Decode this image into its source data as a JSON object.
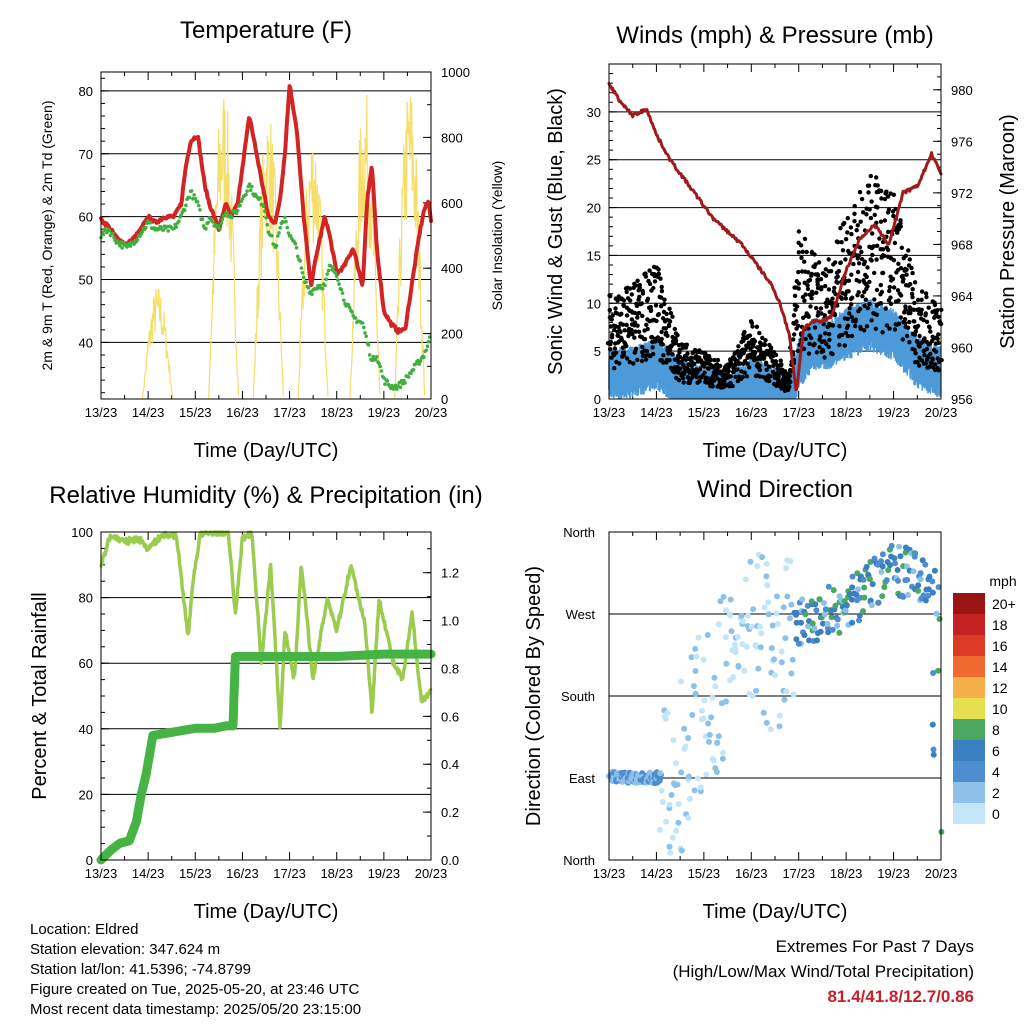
{
  "panels": {
    "temperature": {
      "title": "Temperature (F)",
      "xlabel": "Time (Day/UTC)",
      "ylabel_left": "2m & 9m T (Red, Orange) & 2m Td (Green)",
      "ylabel_right": "Solar Insolation (Yellow)"
    },
    "winds": {
      "title": "Winds (mph) & Pressure (mb)",
      "xlabel": "Time (Day/UTC)",
      "ylabel_left": "Sonic Wind & Gust (Blue, Black)",
      "ylabel_right": "Station Pressure (Maroon)"
    },
    "humidity": {
      "title": "Relative Humidity (%) & Precipitation (in)",
      "xlabel": "Time (Day/UTC)",
      "ylabel_left": "Percent & Total Rainfall"
    },
    "direction": {
      "title": "Wind Direction",
      "xlabel": "Time (Day/UTC)",
      "ylabel_left": "Direction (Colored By Speed)",
      "legend_title": "mph"
    }
  },
  "station": {
    "location": "Location: Eldred",
    "elevation": "Station elevation: 347.624 m",
    "latlon": "Station lat/lon: 41.5396; -74.8799",
    "created": "Figure created on Tue, 2025-05-20, at 23:46 UTC",
    "latest": "Most recent data timestamp: 2025/05/20 23:15:00"
  },
  "extremes": {
    "title": "Extremes For Past 7 Days",
    "subtitle": "(High/Low/Max Wind/Total Precipitation)",
    "values": "81.4/41.8/12.7/0.86"
  },
  "colors": {
    "temp2m": "#d42323",
    "temp9m": "#f08a2a",
    "dewpoint": "#3fb040",
    "solar": "#f5de6a",
    "gust": "#000000",
    "wind": "#4d9bd9",
    "pressure": "#9e1b1b",
    "rh": "#9ccc4f",
    "precip": "#46b444",
    "extremes": "#c8202a"
  },
  "chart_data": [
    {
      "type": "line",
      "title": "Temperature (F)",
      "xlabel": "Time (Day/UTC)",
      "ylabel": "2m & 9m T (Red, Orange) & 2m Td (Green)",
      "y2label": "Solar Insolation (Yellow)",
      "x_ticks": [
        "13/23",
        "14/23",
        "15/23",
        "16/23",
        "17/23",
        "18/23",
        "19/23",
        "20/23"
      ],
      "xlim": [
        0,
        7
      ],
      "ylim": [
        31,
        83
      ],
      "y_ticks": [
        40,
        50,
        60,
        70,
        80
      ],
      "y2lim": [
        0,
        1000
      ],
      "y2_ticks": [
        0,
        200,
        400,
        600,
        800,
        1000
      ],
      "grid": true,
      "series": [
        {
          "name": "2m T",
          "color": "#d42323",
          "axis": "left",
          "style": "line",
          "x": [
            0,
            0.15,
            0.35,
            0.55,
            0.75,
            0.85,
            1.0,
            1.15,
            1.35,
            1.55,
            1.7,
            1.8,
            1.9,
            2.05,
            2.2,
            2.3,
            2.5,
            2.65,
            2.75,
            2.9,
            3.0,
            3.15,
            3.3,
            3.45,
            3.55,
            3.7,
            3.8,
            3.9,
            4.0,
            4.15,
            4.3,
            4.45,
            4.6,
            4.75,
            4.85,
            5.0,
            5.15,
            5.35,
            5.55,
            5.65,
            5.75,
            5.85,
            6.0,
            6.15,
            6.3,
            6.45,
            6.55,
            6.65,
            6.75,
            6.85,
            6.95,
            7.0
          ],
          "y": [
            59.5,
            58.5,
            56.5,
            55.5,
            57.0,
            58.0,
            60.0,
            59.0,
            60.0,
            60.0,
            62.0,
            68.0,
            72.0,
            73.0,
            65.0,
            62.0,
            58.0,
            62.0,
            60.0,
            62.0,
            68.0,
            76.0,
            70.0,
            64.0,
            60.0,
            59.0,
            63.0,
            70.0,
            81.0,
            74.0,
            60.0,
            49.0,
            55.0,
            60.0,
            57.0,
            51.0,
            52.0,
            55.0,
            49.0,
            63.0,
            68.0,
            55.0,
            45.0,
            43.0,
            41.8,
            42.0,
            47.0,
            52.0,
            57.0,
            61.0,
            62.5,
            59.5
          ]
        },
        {
          "name": "2m Td",
          "color": "#3fb040",
          "axis": "left",
          "style": "dots",
          "x": [
            0,
            0.15,
            0.35,
            0.55,
            0.75,
            0.85,
            1.0,
            1.15,
            1.35,
            1.55,
            1.7,
            1.8,
            1.9,
            2.05,
            2.2,
            2.3,
            2.5,
            2.65,
            2.75,
            2.9,
            3.0,
            3.15,
            3.3,
            3.45,
            3.55,
            3.7,
            3.8,
            3.9,
            4.0,
            4.15,
            4.3,
            4.45,
            4.6,
            4.75,
            4.85,
            5.0,
            5.15,
            5.35,
            5.55,
            5.65,
            5.75,
            5.85,
            6.0,
            6.15,
            6.3,
            6.45,
            6.55,
            6.65,
            6.75,
            6.85,
            6.95,
            7.0
          ],
          "y": [
            57.0,
            58.0,
            56.0,
            55.0,
            56.5,
            57.5,
            59.0,
            58.0,
            58.0,
            58.0,
            60.0,
            62.0,
            64.0,
            62.0,
            58.0,
            60.0,
            58.0,
            61.0,
            60.0,
            61.0,
            63.0,
            65.0,
            63.0,
            62.0,
            58.0,
            55.0,
            58.0,
            60.0,
            57.0,
            55.0,
            50.0,
            48.0,
            49.0,
            49.0,
            52.0,
            51.0,
            47.0,
            44.0,
            43.0,
            40.0,
            37.0,
            38.0,
            34.0,
            33.0,
            33.0,
            34.0,
            35.0,
            36.0,
            37.0,
            38.0,
            40.0,
            41.0
          ]
        },
        {
          "name": "Solar Insolation",
          "color": "#f5de6a",
          "axis": "right",
          "style": "line",
          "peaks": [
            {
              "x": 1.2,
              "y": 350
            },
            {
              "x": 2.6,
              "y": 970
            },
            {
              "x": 3.55,
              "y": 900
            },
            {
              "x": 4.5,
              "y": 850
            },
            {
              "x": 5.6,
              "y": 950
            },
            {
              "x": 6.55,
              "y": 980
            }
          ]
        }
      ]
    },
    {
      "type": "scatter",
      "title": "Winds (mph) & Pressure (mb)",
      "xlabel": "Time (Day/UTC)",
      "ylabel": "Sonic Wind & Gust (Blue, Black)",
      "y2label": "Station Pressure (Maroon)",
      "x_ticks": [
        "13/23",
        "14/23",
        "15/23",
        "16/23",
        "17/23",
        "18/23",
        "19/23",
        "20/23"
      ],
      "xlim": [
        0,
        7
      ],
      "ylim": [
        0,
        35
      ],
      "y_ticks": [
        0,
        5,
        10,
        15,
        20,
        25,
        30
      ],
      "y2lim": [
        956,
        982
      ],
      "y2_ticks": [
        956,
        960,
        964,
        968,
        972,
        976,
        980
      ],
      "grid": true,
      "series": [
        {
          "name": "Sonic Wind",
          "color": "#4d9bd9",
          "axis": "left",
          "x": [
            0,
            0.5,
            1.0,
            1.5,
            2.0,
            2.5,
            3.0,
            3.5,
            3.8,
            4.0,
            4.3,
            4.6,
            5.0,
            5.5,
            6.0,
            6.5,
            7.0
          ],
          "y": [
            4.0,
            4.0,
            5.0,
            3.0,
            2.0,
            1.5,
            3.0,
            2.0,
            1.0,
            5.0,
            7.0,
            7.0,
            8.0,
            9.0,
            8.0,
            5.0,
            4.0
          ]
        },
        {
          "name": "Gust",
          "color": "#000000",
          "axis": "left",
          "x": [
            0,
            0.5,
            1.0,
            1.5,
            2.0,
            2.5,
            3.0,
            3.5,
            3.8,
            4.0,
            4.3,
            4.6,
            5.0,
            5.5,
            6.0,
            6.5,
            7.0
          ],
          "y": [
            9.0,
            10.0,
            12.0,
            5.0,
            4.0,
            3.0,
            7.0,
            4.0,
            2.0,
            15.0,
            13.0,
            12.0,
            16.0,
            20.0,
            18.0,
            10.0,
            8.0
          ]
        },
        {
          "name": "Station Pressure",
          "color": "#9e1b1b",
          "axis": "right",
          "x": [
            0,
            0.25,
            0.5,
            0.8,
            1.0,
            1.3,
            1.6,
            1.9,
            2.2,
            2.5,
            2.8,
            3.1,
            3.4,
            3.6,
            3.8,
            3.95,
            4.1,
            4.3,
            4.5,
            4.7,
            5.0,
            5.3,
            5.6,
            5.9,
            6.2,
            6.5,
            6.8,
            7.0
          ],
          "y": [
            980.5,
            979.0,
            978.0,
            978.5,
            976.5,
            974.5,
            973.0,
            971.5,
            970.0,
            969.0,
            968.0,
            966.5,
            965.0,
            963.5,
            961.0,
            956.5,
            961.5,
            962.0,
            962.0,
            962.5,
            966.0,
            968.5,
            969.5,
            968.0,
            972.0,
            972.5,
            975.0,
            973.5
          ]
        }
      ]
    },
    {
      "type": "line",
      "title": "Relative Humidity (%) & Precipitation (in)",
      "xlabel": "Time (Day/UTC)",
      "ylabel": "Percent & Total Rainfall",
      "x_ticks": [
        "13/23",
        "14/23",
        "15/23",
        "16/23",
        "17/23",
        "18/23",
        "19/23",
        "20/23"
      ],
      "xlim": [
        0,
        7
      ],
      "ylim": [
        0,
        100
      ],
      "y_ticks": [
        0,
        20,
        40,
        60,
        80,
        100
      ],
      "y2lim": [
        0,
        1.37
      ],
      "y2_ticks": [
        0.0,
        0.2,
        0.4,
        0.6,
        0.8,
        1.0,
        1.2
      ],
      "grid": true,
      "series": [
        {
          "name": "Relative Humidity",
          "color": "#9ccc4f",
          "axis": "left",
          "x": [
            0,
            0.2,
            0.5,
            0.8,
            1.0,
            1.3,
            1.6,
            1.75,
            1.85,
            1.95,
            2.1,
            2.4,
            2.7,
            2.85,
            3.0,
            3.2,
            3.4,
            3.6,
            3.8,
            3.9,
            4.1,
            4.25,
            4.5,
            4.8,
            5.0,
            5.3,
            5.6,
            5.75,
            5.9,
            6.2,
            6.4,
            6.6,
            6.8,
            7.0
          ],
          "y": [
            90.0,
            99.0,
            97.0,
            98.0,
            95.0,
            99.0,
            99.0,
            80.0,
            68.0,
            85.0,
            99.0,
            100.0,
            100.0,
            75.0,
            98.0,
            100.0,
            60.0,
            90.0,
            40.0,
            70.0,
            55.0,
            90.0,
            55.0,
            80.0,
            70.0,
            90.0,
            72.0,
            45.0,
            80.0,
            60.0,
            55.0,
            75.0,
            48.0,
            52.0
          ]
        },
        {
          "name": "Total Rainfall",
          "color": "#46b444",
          "axis": "right",
          "x": [
            0,
            0.2,
            0.4,
            0.6,
            0.75,
            0.85,
            0.95,
            1.1,
            1.4,
            1.7,
            2.0,
            2.4,
            2.65,
            2.8,
            2.85,
            3.5,
            4.0,
            5.0,
            6.0,
            7.0
          ],
          "y": [
            0.0,
            0.04,
            0.07,
            0.08,
            0.16,
            0.27,
            0.35,
            0.52,
            0.53,
            0.54,
            0.55,
            0.55,
            0.56,
            0.56,
            0.85,
            0.85,
            0.85,
            0.85,
            0.86,
            0.86
          ]
        }
      ]
    },
    {
      "type": "scatter",
      "title": "Wind Direction",
      "xlabel": "Time (Day/UTC)",
      "ylabel": "Direction (Colored By Speed)",
      "x_ticks": [
        "13/23",
        "14/23",
        "15/23",
        "16/23",
        "17/23",
        "18/23",
        "19/23",
        "20/23"
      ],
      "xlim": [
        0,
        7
      ],
      "y_ticks": [
        "North",
        "East",
        "South",
        "West",
        "North"
      ],
      "ylim": [
        0,
        360
      ],
      "grid": true,
      "colorbar": {
        "title": "mph",
        "labels": [
          "0",
          "2",
          "4",
          "6",
          "8",
          "10",
          "12",
          "14",
          "16",
          "18",
          "20+"
        ],
        "colors": [
          "#c3e5f7",
          "#8dc1ea",
          "#4e8ed0",
          "#3a7fc0",
          "#4aa860",
          "#e6df4e",
          "#f5b04a",
          "#ee6a2e",
          "#dd3a26",
          "#c42222",
          "#9b1414"
        ]
      },
      "series": [
        {
          "name": "Direction",
          "x": [
            0.1,
            0.5,
            1.0,
            1.5,
            2.0,
            2.5,
            3.0,
            3.5,
            4.0,
            4.5,
            5.0,
            5.5,
            6.0,
            6.5,
            7.0
          ],
          "y": [
            92.0,
            90.0,
            90.0,
            100.0,
            180.0,
            200.0,
            250.0,
            230.0,
            260.0,
            270.0,
            280.0,
            300.0,
            320.0,
            310.0,
            290.0
          ]
        }
      ]
    }
  ]
}
